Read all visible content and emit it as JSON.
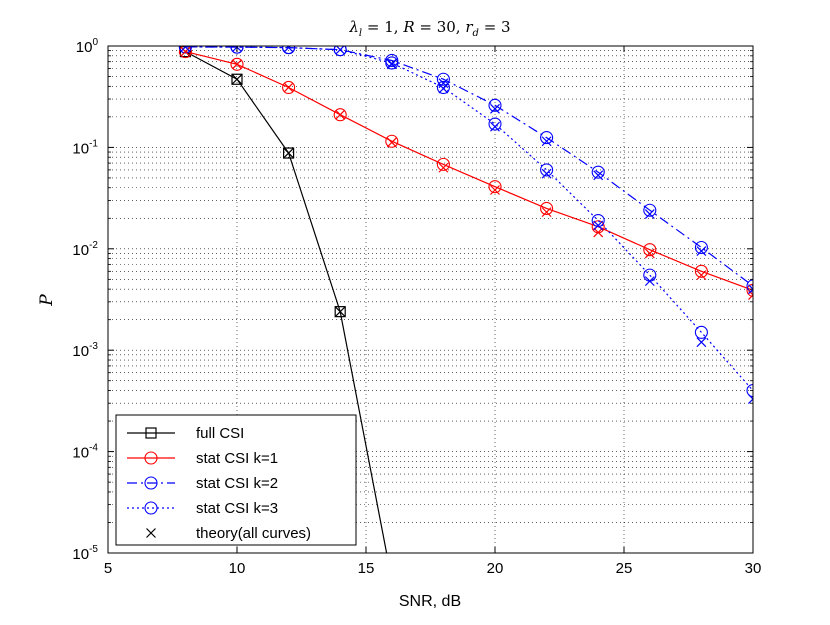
{
  "chart_data": {
    "type": "line",
    "title": "λ_l = 1, R = 30, r_d = 3",
    "title_parts": {
      "lambda": "λ",
      "lambda_sub": "l",
      "eq1": " = 1, ",
      "R": "R",
      "eq2": " = 30, ",
      "r": "r",
      "r_sub": "d",
      "eq3": " = 3"
    },
    "xlabel": "SNR, dB",
    "ylabel": "P",
    "xlim": [
      5,
      30
    ],
    "ylim_log10": [
      -5,
      0
    ],
    "yscale": "log",
    "grid": true,
    "x_ticks": [
      "5",
      "10",
      "15",
      "20",
      "25",
      "30"
    ],
    "y_ticks": [
      {
        "base": "10",
        "exp": "0"
      },
      {
        "base": "10",
        "exp": "-1"
      },
      {
        "base": "10",
        "exp": "-2"
      },
      {
        "base": "10",
        "exp": "-3"
      },
      {
        "base": "10",
        "exp": "-4"
      },
      {
        "base": "10",
        "exp": "-5"
      }
    ],
    "legend_position": "bottom-left",
    "series": [
      {
        "name": "full CSI",
        "color": "#000000",
        "line": "solid",
        "marker": "square",
        "x": [
          8,
          10,
          12,
          14,
          15.8
        ],
        "values": [
          0.88,
          0.47,
          0.088,
          0.0024,
          1e-05
        ],
        "marker_count": 4
      },
      {
        "name": "stat CSI k=1",
        "color": "#ff0000",
        "line": "solid",
        "marker": "circle",
        "x": [
          8,
          10,
          12,
          14,
          16,
          18,
          20,
          22,
          24,
          26,
          28,
          30
        ],
        "values": [
          0.88,
          0.66,
          0.39,
          0.21,
          0.115,
          0.068,
          0.041,
          0.025,
          0.0165,
          0.0098,
          0.006,
          0.0039
        ]
      },
      {
        "name": "stat CSI k=2",
        "color": "#0000ff",
        "line": "dashdot",
        "marker": "circle",
        "x": [
          8,
          10,
          12,
          14,
          16,
          18,
          20,
          22,
          24,
          26,
          28,
          30
        ],
        "values": [
          0.98,
          0.975,
          0.965,
          0.92,
          0.72,
          0.47,
          0.26,
          0.125,
          0.057,
          0.024,
          0.0103,
          0.0043
        ]
      },
      {
        "name": "stat CSI k=3",
        "color": "#0000ff",
        "line": "dotted",
        "marker": "circle",
        "x": [
          8,
          10,
          12,
          14,
          16,
          18,
          20,
          22,
          24,
          26,
          28,
          30
        ],
        "values": [
          0.98,
          0.975,
          0.965,
          0.92,
          0.68,
          0.39,
          0.17,
          0.06,
          0.019,
          0.0055,
          0.0015,
          0.0004
        ]
      },
      {
        "name": "theory(all curves)",
        "color": "#000000",
        "line": "none",
        "marker": "x",
        "points": [
          {
            "x": 8,
            "y": 0.88,
            "color": "#000000"
          },
          {
            "x": 10,
            "y": 0.47,
            "color": "#000000"
          },
          {
            "x": 12,
            "y": 0.088,
            "color": "#000000"
          },
          {
            "x": 14,
            "y": 0.0024,
            "color": "#000000"
          },
          {
            "x": 8,
            "y": 0.88,
            "color": "#ff0000"
          },
          {
            "x": 10,
            "y": 0.66,
            "color": "#ff0000"
          },
          {
            "x": 12,
            "y": 0.39,
            "color": "#ff0000"
          },
          {
            "x": 14,
            "y": 0.21,
            "color": "#ff0000"
          },
          {
            "x": 16,
            "y": 0.112,
            "color": "#ff0000"
          },
          {
            "x": 18,
            "y": 0.063,
            "color": "#ff0000"
          },
          {
            "x": 20,
            "y": 0.038,
            "color": "#ff0000"
          },
          {
            "x": 22,
            "y": 0.023,
            "color": "#ff0000"
          },
          {
            "x": 24,
            "y": 0.0145,
            "color": "#ff0000"
          },
          {
            "x": 26,
            "y": 0.009,
            "color": "#ff0000"
          },
          {
            "x": 28,
            "y": 0.0055,
            "color": "#ff0000"
          },
          {
            "x": 30,
            "y": 0.0035,
            "color": "#ff0000"
          },
          {
            "x": 8,
            "y": 0.98,
            "color": "#0000ff"
          },
          {
            "x": 10,
            "y": 0.975,
            "color": "#0000ff"
          },
          {
            "x": 12,
            "y": 0.965,
            "color": "#0000ff"
          },
          {
            "x": 14,
            "y": 0.92,
            "color": "#0000ff"
          },
          {
            "x": 16,
            "y": 0.67,
            "color": "#0000ff"
          },
          {
            "x": 18,
            "y": 0.43,
            "color": "#0000ff"
          },
          {
            "x": 20,
            "y": 0.24,
            "color": "#0000ff"
          },
          {
            "x": 22,
            "y": 0.115,
            "color": "#0000ff"
          },
          {
            "x": 24,
            "y": 0.053,
            "color": "#0000ff"
          },
          {
            "x": 26,
            "y": 0.022,
            "color": "#0000ff"
          },
          {
            "x": 28,
            "y": 0.0095,
            "color": "#0000ff"
          },
          {
            "x": 30,
            "y": 0.004,
            "color": "#0000ff"
          },
          {
            "x": 16,
            "y": 0.66,
            "color": "#0000ff"
          },
          {
            "x": 18,
            "y": 0.38,
            "color": "#0000ff"
          },
          {
            "x": 20,
            "y": 0.16,
            "color": "#0000ff"
          },
          {
            "x": 22,
            "y": 0.055,
            "color": "#0000ff"
          },
          {
            "x": 24,
            "y": 0.017,
            "color": "#0000ff"
          },
          {
            "x": 26,
            "y": 0.0048,
            "color": "#0000ff"
          },
          {
            "x": 28,
            "y": 0.0012,
            "color": "#0000ff"
          },
          {
            "x": 30,
            "y": 0.00033,
            "color": "#0000ff"
          }
        ]
      }
    ]
  }
}
